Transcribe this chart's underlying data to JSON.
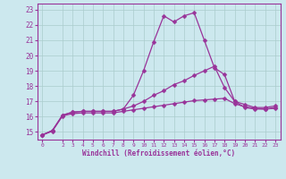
{
  "xlabel": "Windchill (Refroidissement éolien,°C)",
  "bg_color": "#cce8ee",
  "grid_color": "#aacccc",
  "line_color": "#993399",
  "xlim": [
    -0.5,
    23.5
  ],
  "ylim": [
    14.5,
    23.4
  ],
  "xticks": [
    0,
    2,
    3,
    4,
    5,
    6,
    7,
    8,
    9,
    10,
    11,
    12,
    13,
    14,
    15,
    16,
    17,
    18,
    19,
    20,
    21,
    22,
    23
  ],
  "yticks": [
    15,
    16,
    17,
    18,
    19,
    20,
    21,
    22,
    23
  ],
  "series1_x": [
    0,
    1,
    2,
    3,
    4,
    5,
    6,
    7,
    8,
    9,
    10,
    11,
    12,
    13,
    14,
    15,
    16,
    17,
    18,
    19,
    20,
    21,
    22,
    23
  ],
  "series1_y": [
    14.8,
    15.1,
    16.1,
    16.3,
    16.35,
    16.35,
    16.35,
    16.35,
    16.5,
    17.4,
    19.0,
    20.9,
    22.6,
    22.2,
    22.6,
    22.8,
    21.0,
    19.2,
    18.75,
    17.0,
    16.8,
    16.6,
    16.6,
    16.7
  ],
  "series2_x": [
    0,
    1,
    2,
    3,
    4,
    5,
    6,
    7,
    8,
    9,
    10,
    11,
    12,
    13,
    14,
    15,
    16,
    17,
    18,
    19,
    20,
    21,
    22,
    23
  ],
  "series2_y": [
    14.8,
    15.1,
    16.1,
    16.3,
    16.35,
    16.35,
    16.35,
    16.35,
    16.5,
    16.7,
    17.0,
    17.4,
    17.7,
    18.1,
    18.35,
    18.7,
    19.0,
    19.3,
    17.9,
    17.0,
    16.6,
    16.5,
    16.5,
    16.6
  ],
  "series3_x": [
    0,
    1,
    2,
    3,
    4,
    5,
    6,
    7,
    8,
    9,
    10,
    11,
    12,
    13,
    14,
    15,
    16,
    17,
    18,
    19,
    20,
    21,
    22,
    23
  ],
  "series3_y": [
    14.8,
    15.05,
    16.05,
    16.2,
    16.25,
    16.25,
    16.25,
    16.25,
    16.35,
    16.45,
    16.55,
    16.65,
    16.75,
    16.85,
    16.95,
    17.05,
    17.1,
    17.15,
    17.2,
    16.85,
    16.65,
    16.55,
    16.5,
    16.55
  ]
}
